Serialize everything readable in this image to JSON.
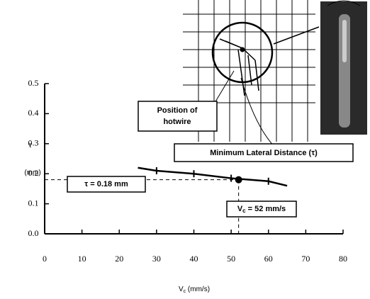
{
  "chart_data": {
    "type": "line",
    "y_label": {
      "symbol": "τ",
      "unit": "(mm)"
    },
    "x_label": {
      "symbol": "V",
      "subscript": "c",
      "unit": "(mm/s)"
    },
    "x": [
      25,
      30,
      40,
      50,
      60,
      65
    ],
    "series": [
      {
        "color": "#000000",
        "values": [
          0.22,
          0.21,
          0.2,
          0.185,
          0.175,
          0.16
        ]
      }
    ],
    "highlight": {
      "x": 52,
      "y": 0.18
    },
    "annotations": {
      "tau": "τ = 0.18 mm",
      "vc": {
        "symbol": "V",
        "subscript": "c",
        "text": "= 52 mm/s"
      },
      "hotwire": [
        "Position of",
        "hotwire"
      ],
      "distance": "Minimum Lateral Distance (τ)"
    },
    "xlim": [
      0,
      80
    ],
    "xticks": [
      0,
      10,
      20,
      30,
      40,
      50,
      60,
      70,
      80
    ],
    "ylim": [
      0,
      0.5
    ],
    "yticks": [
      {
        "value": 0,
        "label": "0.0"
      },
      0.1,
      0.2,
      0.3,
      0.4,
      0.5
    ]
  }
}
